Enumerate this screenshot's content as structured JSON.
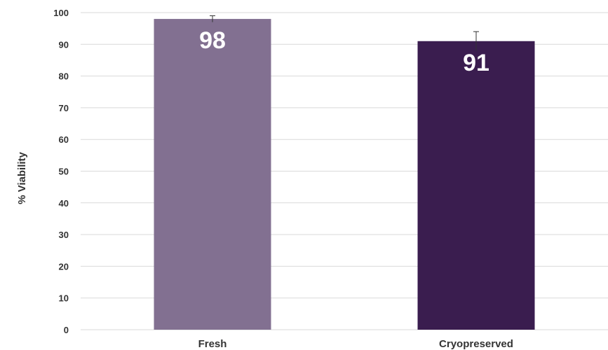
{
  "chart_data": {
    "type": "bar",
    "categories": [
      "Fresh",
      "Cryopreserved"
    ],
    "values": [
      98,
      91
    ],
    "error_bars": [
      1,
      3
    ],
    "data_labels": [
      "98",
      "91"
    ],
    "ylabel": "% Viability",
    "xlabel": "",
    "ylim": [
      0,
      100
    ],
    "yticks": [
      0,
      10,
      20,
      30,
      40,
      50,
      60,
      70,
      80,
      90,
      100
    ],
    "grid": true,
    "legend": "none",
    "colors": {
      "bars": [
        "#827091",
        "#3a1d4f"
      ],
      "grid": "#d9d9d9",
      "axis_text": "#333333",
      "data_label": "#ffffff",
      "error_bar": "#333333"
    }
  }
}
